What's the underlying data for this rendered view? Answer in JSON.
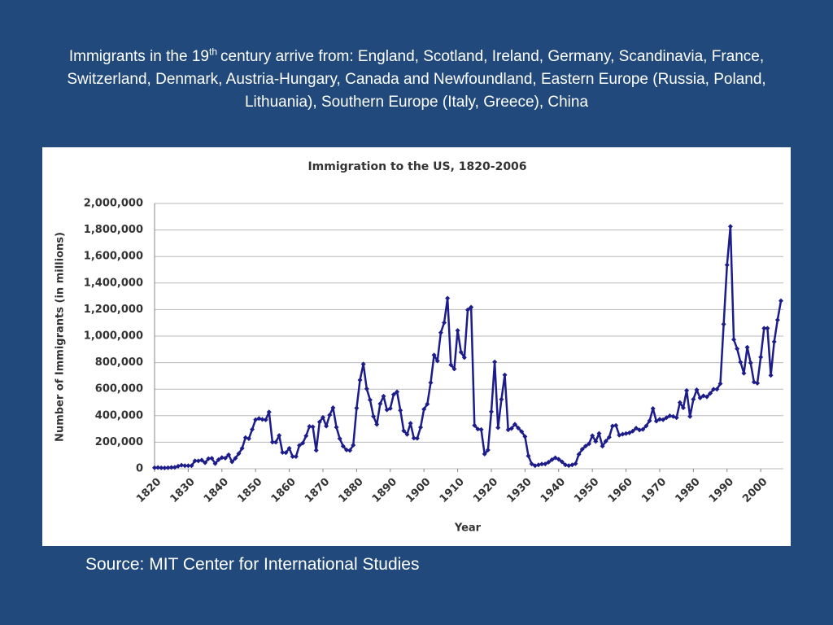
{
  "slide": {
    "heading": {
      "pre": "Immigrants in the 19",
      "sup": "th",
      "post": "century arrive from: England, Scotland, Ireland, Germany, Scandinavia, France, Switzerland, Denmark, Austria-Hungary, Canada and Newfoundland, Eastern Europe (Russia, Poland, Lithuania), Southern Europe (Italy, Greece), China"
    },
    "source": "Source: MIT Center for International Studies"
  },
  "chart_data": {
    "type": "line",
    "title": "Immigration to the US, 1820-2006",
    "x_label": "Year",
    "y_label": "Number of Immigrants (in millions)",
    "color": "#1c1c8a",
    "grid": true,
    "markers": true,
    "xlim": [
      1820,
      2006
    ],
    "xticks": [
      1820,
      1830,
      1840,
      1850,
      1860,
      1870,
      1880,
      1890,
      1900,
      1910,
      1920,
      1930,
      1940,
      1950,
      1960,
      1970,
      1980,
      1990,
      2000
    ],
    "ylim": [
      0,
      2000000
    ],
    "yticks": [
      0,
      {
        "value": 200000,
        "label": "200,000"
      },
      {
        "value": 400000,
        "label": "400,000"
      },
      {
        "value": 600000,
        "label": "600,000"
      },
      {
        "value": 800000,
        "label": "800,000"
      },
      {
        "value": 1000000,
        "label": "1,000,000"
      },
      {
        "value": 1200000,
        "label": "1,200,000"
      },
      {
        "value": 1400000,
        "label": "1,400,000"
      },
      {
        "value": 1600000,
        "label": "1,600,000"
      },
      {
        "value": 1800000,
        "label": "1,800,000"
      },
      {
        "value": 2000000,
        "label": "2,000,000"
      }
    ],
    "x": [
      1820,
      1821,
      1822,
      1823,
      1824,
      1825,
      1826,
      1827,
      1828,
      1829,
      1830,
      1831,
      1832,
      1833,
      1834,
      1835,
      1836,
      1837,
      1838,
      1839,
      1840,
      1841,
      1842,
      1843,
      1844,
      1845,
      1846,
      1847,
      1848,
      1849,
      1850,
      1851,
      1852,
      1853,
      1854,
      1855,
      1856,
      1857,
      1858,
      1859,
      1860,
      1861,
      1862,
      1863,
      1864,
      1865,
      1866,
      1867,
      1868,
      1869,
      1870,
      1871,
      1872,
      1873,
      1874,
      1875,
      1876,
      1877,
      1878,
      1879,
      1880,
      1881,
      1882,
      1883,
      1884,
      1885,
      1886,
      1887,
      1888,
      1889,
      1890,
      1891,
      1892,
      1893,
      1894,
      1895,
      1896,
      1897,
      1898,
      1899,
      1900,
      1901,
      1902,
      1903,
      1904,
      1905,
      1906,
      1907,
      1908,
      1909,
      1910,
      1911,
      1912,
      1913,
      1914,
      1915,
      1916,
      1917,
      1918,
      1919,
      1920,
      1921,
      1922,
      1923,
      1924,
      1925,
      1926,
      1927,
      1928,
      1929,
      1930,
      1931,
      1932,
      1933,
      1934,
      1935,
      1936,
      1937,
      1938,
      1939,
      1940,
      1941,
      1942,
      1943,
      1944,
      1945,
      1946,
      1947,
      1948,
      1949,
      1950,
      1951,
      1952,
      1953,
      1954,
      1955,
      1956,
      1957,
      1958,
      1959,
      1960,
      1961,
      1962,
      1963,
      1964,
      1965,
      1966,
      1967,
      1968,
      1969,
      1970,
      1971,
      1972,
      1973,
      1974,
      1975,
      1976,
      1977,
      1978,
      1979,
      1980,
      1981,
      1982,
      1983,
      1984,
      1985,
      1986,
      1987,
      1988,
      1989,
      1990,
      1991,
      1992,
      1993,
      1994,
      1995,
      1996,
      1997,
      1998,
      1999,
      2000,
      2001,
      2002,
      2003,
      2004,
      2005,
      2006
    ],
    "values": [
      8000,
      9000,
      7000,
      6000,
      8000,
      10000,
      11000,
      19000,
      27000,
      23000,
      23000,
      23000,
      60000,
      59000,
      65000,
      45000,
      76000,
      79000,
      39000,
      68000,
      84000,
      80000,
      105000,
      52000,
      79000,
      114000,
      154000,
      235000,
      227000,
      297000,
      370000,
      379000,
      372000,
      369000,
      428000,
      201000,
      200000,
      251000,
      123000,
      121000,
      154000,
      92000,
      92000,
      176000,
      193000,
      248000,
      319000,
      316000,
      139000,
      353000,
      387000,
      321000,
      405000,
      460000,
      313000,
      227000,
      170000,
      142000,
      138000,
      178000,
      457000,
      669000,
      789000,
      603000,
      519000,
      395000,
      334000,
      490000,
      547000,
      444000,
      455000,
      560000,
      580000,
      440000,
      286000,
      259000,
      343000,
      231000,
      229000,
      312000,
      449000,
      488000,
      649000,
      857000,
      813000,
      1026000,
      1101000,
      1285000,
      783000,
      752000,
      1042000,
      879000,
      838000,
      1198000,
      1218000,
      327000,
      299000,
      295000,
      111000,
      141000,
      430000,
      805000,
      310000,
      523000,
      707000,
      294000,
      304000,
      335000,
      307000,
      280000,
      242000,
      97000,
      36000,
      23000,
      29000,
      35000,
      36000,
      50000,
      68000,
      83000,
      71000,
      52000,
      29000,
      24000,
      29000,
      38000,
      109000,
      147000,
      171000,
      188000,
      249000,
      206000,
      266000,
      170000,
      208000,
      238000,
      322000,
      327000,
      253000,
      261000,
      265000,
      271000,
      284000,
      306000,
      292000,
      297000,
      323000,
      362000,
      454000,
      359000,
      373000,
      370000,
      385000,
      399000,
      394000,
      385000,
      499000,
      459000,
      590000,
      394000,
      524000,
      595000,
      534000,
      550000,
      542000,
      568000,
      600000,
      600000,
      641000,
      1090000,
      1536000,
      1827000,
      974000,
      904000,
      804000,
      720000,
      916000,
      798000,
      653000,
      645000,
      841000,
      1059000,
      1059000,
      704000,
      958000,
      1122000,
      1266000
    ]
  }
}
